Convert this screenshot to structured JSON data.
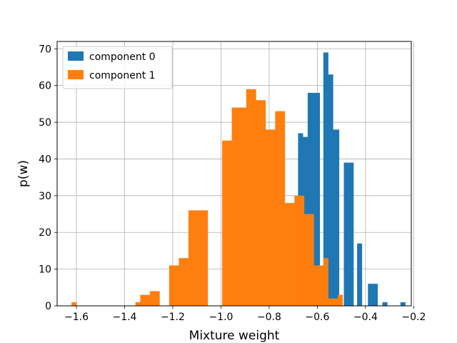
{
  "chart_data": {
    "type": "histogram",
    "xlabel": "Mixture weight",
    "ylabel": "p(w)",
    "xlim": [
      -1.68,
      -0.21
    ],
    "ylim": [
      0,
      72
    ],
    "xticks": [
      -1.6,
      -1.4,
      -1.2,
      -1.0,
      -0.8,
      -0.6,
      -0.4,
      -0.2
    ],
    "xtick_labels": [
      "−1.6",
      "−1.4",
      "−1.2",
      "−1.0",
      "−0.8",
      "−0.6",
      "−0.4",
      "−0.2"
    ],
    "yticks": [
      0,
      10,
      20,
      30,
      40,
      50,
      60,
      70
    ],
    "ytick_labels": [
      "0",
      "10",
      "20",
      "30",
      "40",
      "50",
      "60",
      "70"
    ],
    "grid": true,
    "legend_position": "top-left",
    "series": [
      {
        "name": "component 0",
        "color": "#1f77b4",
        "bins": [
          {
            "x0": -0.68,
            "x1": -0.66,
            "count": 47
          },
          {
            "x0": -0.66,
            "x1": -0.64,
            "count": 46
          },
          {
            "x0": -0.64,
            "x1": -0.615,
            "count": 58
          },
          {
            "x0": -0.615,
            "x1": -0.59,
            "count": 58
          },
          {
            "x0": -0.575,
            "x1": -0.555,
            "count": 69
          },
          {
            "x0": -0.555,
            "x1": -0.535,
            "count": 63
          },
          {
            "x0": -0.535,
            "x1": -0.51,
            "count": 48
          },
          {
            "x0": -0.49,
            "x1": -0.47,
            "count": 39
          },
          {
            "x0": -0.47,
            "x1": -0.45,
            "count": 39
          },
          {
            "x0": -0.435,
            "x1": -0.415,
            "count": 17
          },
          {
            "x0": -0.39,
            "x1": -0.37,
            "count": 6
          },
          {
            "x0": -0.37,
            "x1": -0.35,
            "count": 6
          },
          {
            "x0": -0.33,
            "x1": -0.31,
            "count": 1
          },
          {
            "x0": -0.255,
            "x1": -0.235,
            "count": 1
          }
        ]
      },
      {
        "name": "component 1",
        "color": "#ff7f0e",
        "bins": [
          {
            "x0": -1.62,
            "x1": -1.6,
            "count": 1
          },
          {
            "x0": -1.355,
            "x1": -1.335,
            "count": 1
          },
          {
            "x0": -1.335,
            "x1": -1.315,
            "count": 3
          },
          {
            "x0": -1.315,
            "x1": -1.295,
            "count": 3
          },
          {
            "x0": -1.295,
            "x1": -1.275,
            "count": 4
          },
          {
            "x0": -1.275,
            "x1": -1.255,
            "count": 4
          },
          {
            "x0": -1.215,
            "x1": -1.195,
            "count": 11
          },
          {
            "x0": -1.195,
            "x1": -1.175,
            "count": 11
          },
          {
            "x0": -1.175,
            "x1": -1.155,
            "count": 13
          },
          {
            "x0": -1.155,
            "x1": -1.135,
            "count": 13
          },
          {
            "x0": -1.135,
            "x1": -1.115,
            "count": 26
          },
          {
            "x0": -1.115,
            "x1": -1.095,
            "count": 26
          },
          {
            "x0": -1.095,
            "x1": -1.075,
            "count": 26
          },
          {
            "x0": -1.075,
            "x1": -1.055,
            "count": 26
          },
          {
            "x0": -0.995,
            "x1": -0.975,
            "count": 45
          },
          {
            "x0": -0.975,
            "x1": -0.955,
            "count": 45
          },
          {
            "x0": -0.955,
            "x1": -0.935,
            "count": 54
          },
          {
            "x0": -0.935,
            "x1": -0.915,
            "count": 54
          },
          {
            "x0": -0.915,
            "x1": -0.895,
            "count": 54
          },
          {
            "x0": -0.895,
            "x1": -0.875,
            "count": 59
          },
          {
            "x0": -0.875,
            "x1": -0.855,
            "count": 59
          },
          {
            "x0": -0.855,
            "x1": -0.835,
            "count": 56
          },
          {
            "x0": -0.835,
            "x1": -0.815,
            "count": 56
          },
          {
            "x0": -0.815,
            "x1": -0.795,
            "count": 48
          },
          {
            "x0": -0.795,
            "x1": -0.775,
            "count": 48
          },
          {
            "x0": -0.775,
            "x1": -0.755,
            "count": 53
          },
          {
            "x0": -0.755,
            "x1": -0.735,
            "count": 53
          },
          {
            "x0": -0.735,
            "x1": -0.715,
            "count": 28
          },
          {
            "x0": -0.715,
            "x1": -0.695,
            "count": 28
          },
          {
            "x0": -0.695,
            "x1": -0.675,
            "count": 30
          },
          {
            "x0": -0.675,
            "x1": -0.655,
            "count": 30
          },
          {
            "x0": -0.655,
            "x1": -0.635,
            "count": 25
          },
          {
            "x0": -0.635,
            "x1": -0.615,
            "count": 25
          },
          {
            "x0": -0.615,
            "x1": -0.595,
            "count": 11
          },
          {
            "x0": -0.595,
            "x1": -0.575,
            "count": 11
          },
          {
            "x0": -0.575,
            "x1": -0.555,
            "count": 13
          },
          {
            "x0": -0.555,
            "x1": -0.535,
            "count": 2
          },
          {
            "x0": -0.535,
            "x1": -0.515,
            "count": 2
          },
          {
            "x0": -0.515,
            "x1": -0.495,
            "count": 3
          }
        ]
      }
    ]
  }
}
